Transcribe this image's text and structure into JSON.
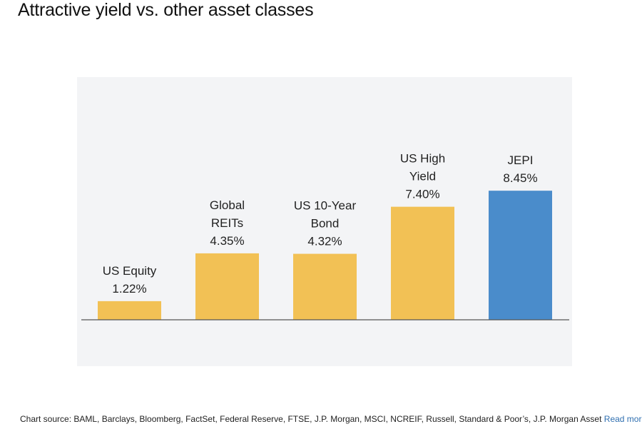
{
  "title": "Attractive yield vs. other asset classes",
  "chart_data": {
    "type": "bar",
    "categories": [
      "US Equity",
      "Global REITs",
      "US 10-Year Bond",
      "US High Yield",
      "JEPI"
    ],
    "category_label_lines": [
      [
        "US Equity"
      ],
      [
        "Global",
        "REITs"
      ],
      [
        "US 10-Year",
        "Bond"
      ],
      [
        "US High",
        "Yield"
      ],
      [
        "JEPI"
      ]
    ],
    "values": [
      1.22,
      4.35,
      4.32,
      7.4,
      8.45
    ],
    "value_labels": [
      "1.22%",
      "4.35%",
      "4.32%",
      "7.40%",
      "8.45%"
    ],
    "unit": "%",
    "ylim": [
      0,
      10
    ],
    "colors": [
      "#f2c155",
      "#f2c155",
      "#f2c155",
      "#f2c155",
      "#4a8ccb"
    ],
    "background": "#f3f4f6",
    "baseline_color": "#555555",
    "grid": false,
    "legend": "none",
    "xlabel": "",
    "ylabel": ""
  },
  "footer": {
    "source_text": "Chart source: BAML, Barclays, Bloomberg, FactSet, Federal Reserve, FTSE, J.P. Morgan, MSCI, NCREIF, Russell, Standard & Poor’s, J.P. Morgan Asset",
    "read_more_label": "Read more"
  }
}
